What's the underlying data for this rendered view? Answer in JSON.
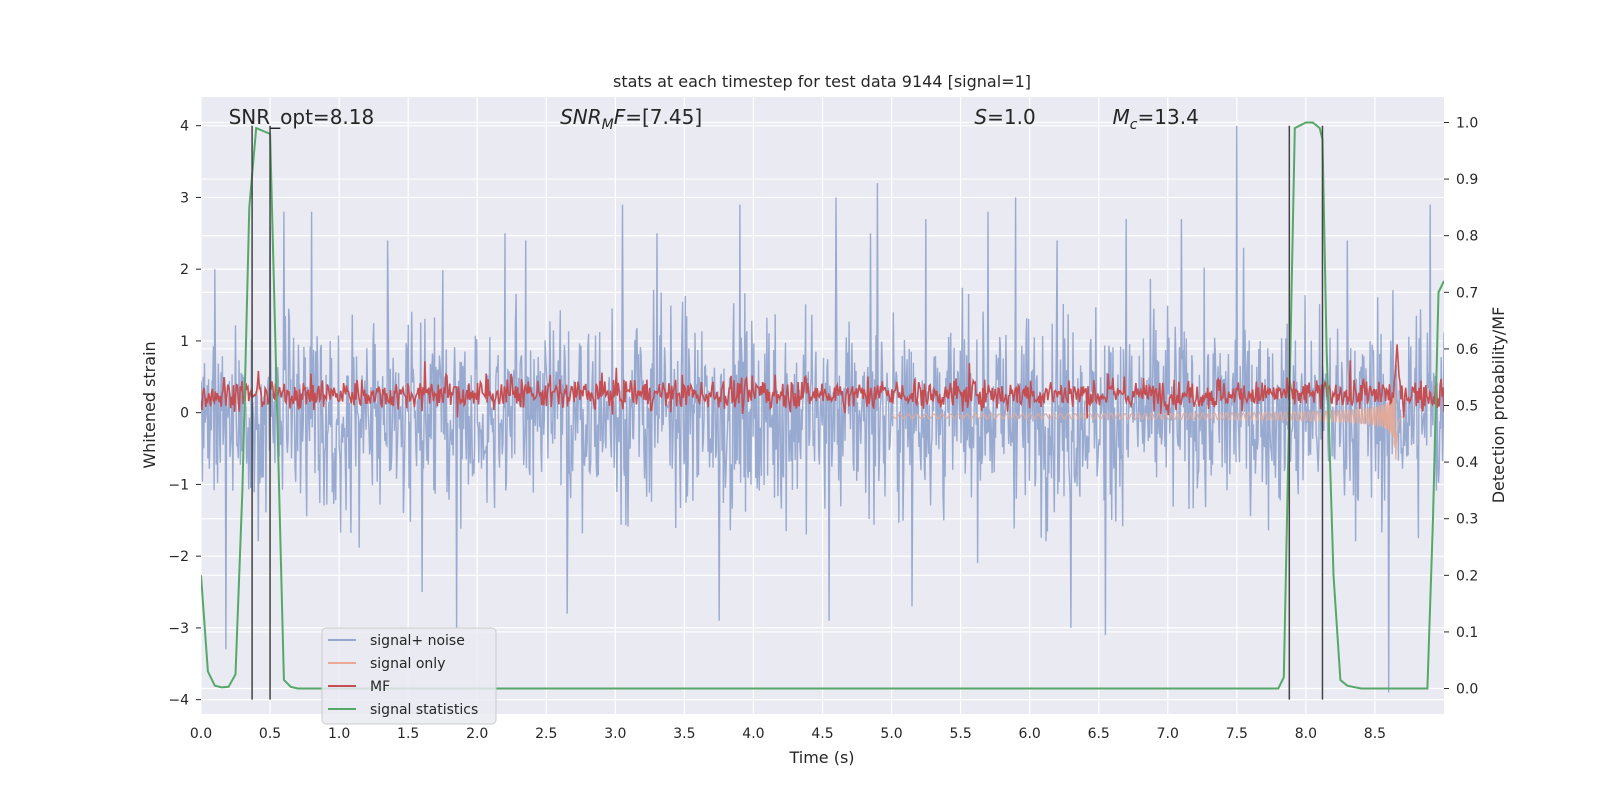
{
  "chart_data": {
    "type": "line",
    "title": "stats at each timestep for test data 9144 [signal=1]",
    "xlabel": "Time (s)",
    "ylabel": "Whitened strain",
    "y2label": "Detection probability/MF",
    "xlim": [
      0,
      9.0
    ],
    "ylim": [
      -4.2,
      4.4
    ],
    "y2lim": [
      -0.045,
      1.045
    ],
    "x_ticks": [
      "0.0",
      "0.5",
      "1.0",
      "1.5",
      "2.0",
      "2.5",
      "3.0",
      "3.5",
      "4.0",
      "4.5",
      "5.0",
      "5.5",
      "6.0",
      "6.5",
      "7.0",
      "7.5",
      "8.0",
      "8.5"
    ],
    "y_ticks": [
      "−4",
      "−3",
      "−2",
      "−1",
      "0",
      "1",
      "2",
      "3",
      "4"
    ],
    "y2_ticks": [
      "0.0",
      "0.1",
      "0.2",
      "0.3",
      "0.4",
      "0.5",
      "0.6",
      "0.7",
      "0.8",
      "0.9",
      "1.0"
    ],
    "grid": true,
    "legend_position": "lower-left",
    "annotations": [
      {
        "text_before": "SNR_opt=8.18",
        "math": "",
        "sub": "",
        "text_after": "",
        "x": 0.2
      },
      {
        "text_before": "",
        "math": "SNR",
        "sub": "M",
        "math2": "F",
        "text_after": "=[7.45]",
        "x": 2.6
      },
      {
        "text_before": "",
        "math": "S",
        "sub": "",
        "math2": "",
        "text_after": "=1.0",
        "x": 5.6
      },
      {
        "text_before": "",
        "math": "M",
        "sub": "c",
        "math2": "",
        "text_after": "=13.4",
        "x": 6.6
      }
    ],
    "vlines": [
      0.37,
      0.5,
      7.88,
      8.12
    ],
    "series": [
      {
        "name": "signal+ noise",
        "color": "#95a7cf",
        "axis": "left",
        "kind": "noise",
        "envelope": 1.6,
        "peaks": [
          [
            0.1,
            2.0
          ],
          [
            0.18,
            -3.3
          ],
          [
            0.5,
            2.6
          ],
          [
            0.6,
            2.8
          ],
          [
            0.8,
            2.8
          ],
          [
            1.35,
            2.4
          ],
          [
            1.6,
            -2.5
          ],
          [
            1.85,
            -3.0
          ],
          [
            2.2,
            2.5
          ],
          [
            2.35,
            2.4
          ],
          [
            2.65,
            -2.8
          ],
          [
            3.05,
            2.9
          ],
          [
            3.3,
            2.5
          ],
          [
            3.75,
            -2.9
          ],
          [
            3.9,
            2.9
          ],
          [
            4.55,
            -2.9
          ],
          [
            4.6,
            3.0
          ],
          [
            4.85,
            2.5
          ],
          [
            4.9,
            3.2
          ],
          [
            5.15,
            -2.7
          ],
          [
            5.25,
            2.7
          ],
          [
            5.7,
            2.8
          ],
          [
            5.9,
            3.0
          ],
          [
            6.2,
            2.4
          ],
          [
            6.3,
            -3.0
          ],
          [
            6.55,
            -3.1
          ],
          [
            6.7,
            2.7
          ],
          [
            7.1,
            2.7
          ],
          [
            7.5,
            4.0
          ],
          [
            7.55,
            2.3
          ],
          [
            8.3,
            2.4
          ],
          [
            8.6,
            -3.9
          ],
          [
            8.9,
            2.9
          ]
        ]
      },
      {
        "name": "signal only",
        "color": "#e8a894",
        "axis": "left",
        "kind": "chirp",
        "t_merger": 8.65,
        "amp_max": 1.6
      },
      {
        "name": "MF",
        "color": "#c44e52",
        "axis": "right",
        "kind": "mf",
        "base": 0.52,
        "jitter": 0.035,
        "peak_x": 8.66,
        "peak_y": 0.61
      },
      {
        "name": "signal statistics",
        "color": "#55a868",
        "axis": "right",
        "kind": "line",
        "x": [
          0.0,
          0.05,
          0.1,
          0.15,
          0.2,
          0.25,
          0.3,
          0.35,
          0.4,
          0.45,
          0.5,
          0.55,
          0.6,
          0.65,
          0.7,
          0.8,
          1.0,
          2.0,
          3.0,
          4.0,
          5.0,
          6.0,
          7.0,
          7.5,
          7.8,
          7.84,
          7.88,
          7.92,
          7.96,
          8.0,
          8.05,
          8.1,
          8.12,
          8.15,
          8.2,
          8.25,
          8.3,
          8.4,
          8.5,
          8.6,
          8.7,
          8.8,
          8.88,
          8.92,
          8.96,
          9.0
        ],
        "y": [
          0.2,
          0.03,
          0.005,
          0.002,
          0.003,
          0.025,
          0.35,
          0.85,
          0.99,
          0.985,
          0.98,
          0.5,
          0.015,
          0.003,
          0.0,
          0.0,
          0.0,
          0.0,
          0.0,
          0.0,
          0.0,
          0.0,
          0.0,
          0.0,
          0.0,
          0.02,
          0.5,
          0.99,
          0.995,
          1.0,
          1.0,
          0.99,
          0.97,
          0.6,
          0.2,
          0.015,
          0.005,
          0.0,
          0.0,
          0.0,
          0.0,
          0.0,
          0.0,
          0.3,
          0.7,
          0.72
        ]
      }
    ]
  }
}
